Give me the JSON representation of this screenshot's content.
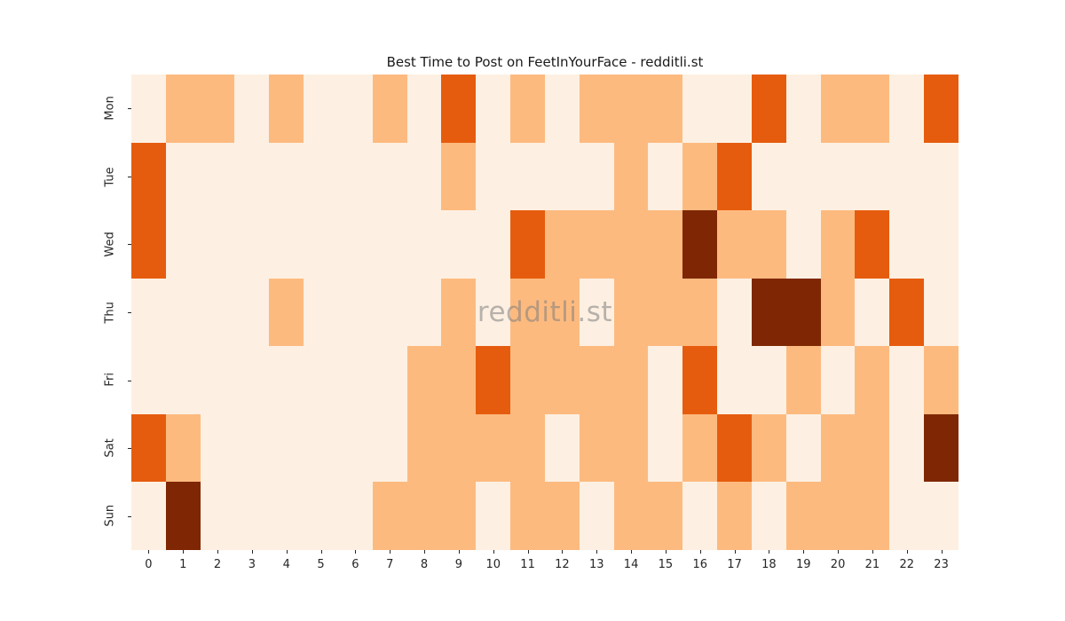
{
  "title": "Best Time to Post on FeetInYourFace - redditli.st",
  "watermark": "redditli.st",
  "chart_data": {
    "type": "heatmap",
    "title": "Best Time to Post on FeetInYourFace - redditli.st",
    "xlabel": "",
    "ylabel": "",
    "x_labels": [
      "0",
      "1",
      "2",
      "3",
      "4",
      "5",
      "6",
      "7",
      "8",
      "9",
      "10",
      "11",
      "12",
      "13",
      "14",
      "15",
      "16",
      "17",
      "18",
      "19",
      "20",
      "21",
      "22",
      "23"
    ],
    "y_labels": [
      "Mon",
      "Tue",
      "Wed",
      "Thu",
      "Fri",
      "Sat",
      "Sun"
    ],
    "legend_position": "none",
    "grid": false,
    "levels": [
      0,
      1,
      2,
      3
    ],
    "palette": [
      "#fdf0e2",
      "#fdba7f",
      "#e65c0e",
      "#7f2704"
    ],
    "values": [
      [
        0,
        1,
        1,
        0,
        1,
        0,
        0,
        1,
        0,
        2,
        0,
        1,
        0,
        1,
        1,
        1,
        0,
        0,
        2,
        0,
        1,
        1,
        0,
        2
      ],
      [
        2,
        0,
        0,
        0,
        0,
        0,
        0,
        0,
        0,
        1,
        0,
        0,
        0,
        0,
        1,
        0,
        1,
        2,
        0,
        0,
        0,
        0,
        0,
        0
      ],
      [
        2,
        0,
        0,
        0,
        0,
        0,
        0,
        0,
        0,
        0,
        0,
        2,
        1,
        1,
        1,
        1,
        3,
        1,
        1,
        0,
        1,
        2,
        0,
        0
      ],
      [
        0,
        0,
        0,
        0,
        1,
        0,
        0,
        0,
        0,
        1,
        0,
        1,
        1,
        0,
        1,
        1,
        1,
        0,
        3,
        3,
        1,
        0,
        2,
        0
      ],
      [
        0,
        0,
        0,
        0,
        0,
        0,
        0,
        0,
        1,
        1,
        2,
        1,
        1,
        1,
        1,
        0,
        2,
        0,
        0,
        1,
        0,
        1,
        0,
        1
      ],
      [
        2,
        1,
        0,
        0,
        0,
        0,
        0,
        0,
        1,
        1,
        1,
        1,
        0,
        1,
        1,
        0,
        1,
        2,
        1,
        0,
        1,
        1,
        0,
        3
      ],
      [
        0,
        3,
        0,
        0,
        0,
        0,
        0,
        1,
        1,
        1,
        0,
        1,
        1,
        0,
        1,
        1,
        0,
        1,
        0,
        1,
        1,
        1,
        0,
        0
      ]
    ]
  }
}
